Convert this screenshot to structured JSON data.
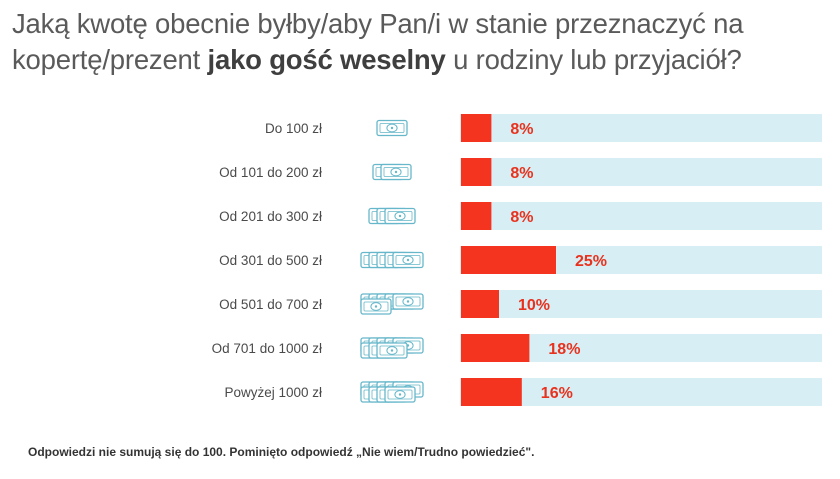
{
  "title": {
    "part1": "Jaką kwotę obecnie byłby/aby Pan/i w stanie przeznaczyć na kopertę/prezent ",
    "bold": "jako gość weselny",
    "part2": " u rodziny lub przyjaciół?"
  },
  "footnote": "Odpowiedzi nie sumują się do 100. Pominięto odpowiedź „Nie wiem/Trudno powiedzieć\".",
  "colors": {
    "bar": "#f5341f",
    "track": "#d7eef4",
    "value_text": "#e8321e",
    "label_text": "#4a4a4a",
    "money_icon": "#66b7c9"
  },
  "icon": "banknote-icon",
  "chart_data": {
    "type": "bar",
    "orientation": "horizontal",
    "categories": [
      "Do 100 zł",
      "Od 101 do 200 zł",
      "Od 201 do 300 zł",
      "Od 301 do 500 zł",
      "Od 501 do 700 zł",
      "Od 701 do 1000 zł",
      "Powyżej 1000 zł"
    ],
    "values": [
      8,
      8,
      8,
      25,
      10,
      18,
      16
    ],
    "value_labels": [
      "8%",
      "8%",
      "8%",
      "25%",
      "10%",
      "18%",
      "16%"
    ],
    "banknote_counts": [
      1,
      2,
      3,
      5,
      6,
      8,
      9
    ],
    "xlim": [
      0,
      100
    ],
    "grid": false,
    "legend": "none"
  }
}
